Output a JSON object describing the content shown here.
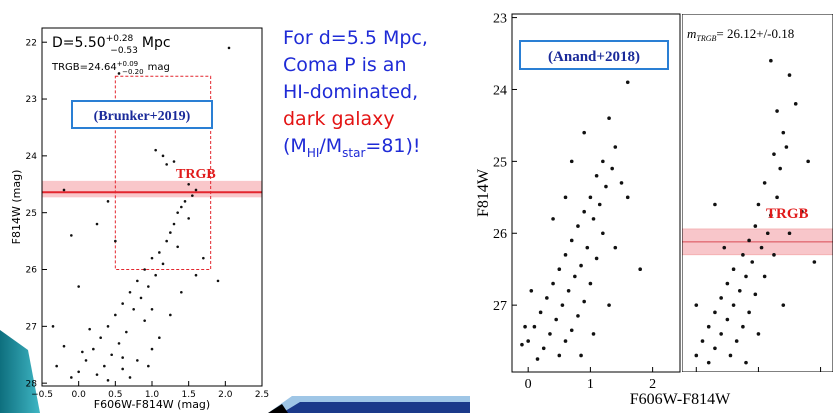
{
  "chart_data": [
    {
      "type": "scatter",
      "color": "#111111",
      "xlabel": "F606W-F814W (mag)",
      "ylabel": "F814W (mag)",
      "xlim": [
        -0.5,
        2.5
      ],
      "ylim": [
        28.05,
        21.75
      ],
      "xticks": [
        {
          "value": -0.5,
          "label": "−0.5"
        },
        {
          "value": 0,
          "label": "0.0"
        },
        {
          "value": 0.5,
          "label": "0.5"
        },
        {
          "value": 1,
          "label": "1.0"
        },
        {
          "value": 1.5,
          "label": "1.5"
        },
        {
          "value": 2,
          "label": "2.0"
        },
        {
          "value": 2.5,
          "label": "2.5"
        }
      ],
      "yticks": [
        22,
        23,
        24,
        25,
        26,
        27,
        28
      ],
      "x": [
        2.05,
        0.55,
        1.05,
        1.15,
        1.2,
        1.3,
        -0.2,
        0.4,
        1.5,
        1.6,
        1.55,
        1.45,
        1.4,
        1.35,
        1.5,
        1.3,
        1.25,
        1.2,
        1.35,
        1.1,
        1.0,
        1.15,
        0.9,
        1.05,
        0.8,
        0.95,
        0.7,
        0.85,
        0.6,
        0.75,
        0.5,
        0.9,
        0.4,
        0.65,
        0.3,
        0.55,
        0.2,
        0.45,
        0.1,
        0.35,
        0.0,
        0.6,
        -0.3,
        0.25,
        0.8,
        1.0,
        0.7,
        -0.1,
        0.15,
        -0.35,
        0.0,
        -0.1,
        0.25,
        1.6,
        1.9,
        1.25,
        1.1,
        0.5,
        1.7,
        0.95,
        0.4,
        0.05,
        1.4,
        1.0,
        0.6,
        -0.2
      ],
      "values": [
        22.1,
        22.55,
        23.9,
        24.0,
        24.15,
        24.1,
        24.6,
        24.8,
        24.5,
        24.6,
        24.7,
        24.8,
        24.9,
        25.0,
        25.1,
        25.2,
        25.35,
        25.5,
        25.6,
        25.7,
        25.8,
        25.9,
        26.0,
        26.1,
        26.2,
        26.3,
        26.4,
        26.5,
        26.6,
        26.7,
        26.8,
        26.9,
        27.0,
        27.1,
        27.2,
        27.3,
        27.4,
        27.5,
        27.6,
        27.7,
        27.8,
        27.75,
        27.7,
        27.85,
        27.6,
        27.4,
        27.9,
        27.9,
        27.05,
        27.0,
        26.3,
        25.4,
        25.2,
        26.1,
        26.2,
        26.8,
        27.2,
        25.5,
        25.8,
        27.7,
        27.95,
        27.45,
        26.4,
        26.7,
        27.55,
        27.35
      ],
      "annotations": {
        "distance": "D=5.50",
        "distance_plus": "+0.28",
        "distance_minus": "−0.53",
        "distance_unit": "Mpc",
        "trgb_prefix": "TRGB=",
        "trgb": 24.64,
        "trgb_plus": {
          "value": 0.09,
          "label": "+0.09"
        },
        "trgb_minus": {
          "value": 0.2,
          "label": "−0.20"
        },
        "trgb_unit": "mag",
        "source": "(Brunker+2019)",
        "line_label": "TRGB"
      },
      "selection_box": {
        "x": [
          0.5,
          1.8
        ],
        "y": [
          22.6,
          26.0
        ]
      }
    },
    {
      "type": "scatter",
      "color": "#111111",
      "xlabel": "F606W-F814W",
      "ylabel": "F814W",
      "xlim": [
        -0.26,
        2.44
      ],
      "ylim": [
        27.93,
        22.95
      ],
      "xticks": [
        0,
        1,
        2
      ],
      "yticks": [
        23,
        24,
        25,
        26,
        27
      ],
      "x": [
        1.5,
        1.6,
        1.3,
        0.9,
        1.4,
        1.2,
        1.35,
        1.1,
        0.7,
        1.25,
        1.0,
        1.15,
        0.9,
        1.05,
        0.8,
        1.2,
        0.7,
        0.95,
        0.6,
        1.1,
        0.85,
        0.5,
        0.75,
        1.0,
        0.4,
        0.65,
        0.3,
        0.9,
        0.55,
        0.2,
        0.8,
        0.45,
        0.1,
        0.7,
        0.35,
        0.0,
        0.6,
        0.25,
        -0.1,
        0.5,
        0.15,
        -0.05,
        1.4,
        1.6,
        1.8,
        0.4,
        1.3,
        1.05,
        0.05,
        0.85,
        1.5,
        0.6
      ],
      "values": [
        23.7,
        23.9,
        24.4,
        24.6,
        24.8,
        25.0,
        25.1,
        25.2,
        25.0,
        25.35,
        25.5,
        25.6,
        25.7,
        25.8,
        25.9,
        26.0,
        26.1,
        26.2,
        26.3,
        26.35,
        26.45,
        26.5,
        26.6,
        26.7,
        26.7,
        26.8,
        26.9,
        26.95,
        27.0,
        27.1,
        27.15,
        27.2,
        27.3,
        27.35,
        27.4,
        27.5,
        27.5,
        27.6,
        27.55,
        27.7,
        27.75,
        27.3,
        26.2,
        25.5,
        26.5,
        25.8,
        27.0,
        27.4,
        26.8,
        27.7,
        25.3,
        25.5
      ],
      "annotations": {
        "source": "(Anand+2018)"
      }
    },
    {
      "type": "scatter",
      "color": "#111111",
      "xlim": [
        -0.23,
        2.2
      ],
      "ylim": [
        27.93,
        22.95
      ],
      "xticks": [
        0,
        1,
        2
      ],
      "x": [
        1.2,
        1.5,
        1.6,
        1.3,
        1.4,
        1.45,
        1.25,
        1.35,
        1.1,
        1.3,
        1.0,
        1.2,
        0.95,
        1.15,
        0.85,
        1.05,
        0.75,
        1.25,
        0.9,
        0.6,
        0.8,
        1.1,
        0.5,
        0.7,
        0.95,
        0.4,
        0.6,
        0.3,
        0.85,
        0.5,
        0.2,
        0.75,
        0.4,
        0.1,
        0.65,
        0.3,
        0.0,
        0.55,
        0.2,
        1.5,
        1.7,
        1.9,
        0.3,
        1.4,
        1.0,
        0.0,
        1.8,
        0.8,
        0.45
      ],
      "values": [
        23.6,
        23.8,
        24.2,
        24.3,
        24.6,
        24.8,
        24.9,
        25.1,
        25.3,
        25.5,
        25.6,
        25.75,
        25.9,
        26.0,
        26.1,
        26.2,
        26.3,
        26.3,
        26.4,
        26.5,
        26.6,
        26.6,
        26.7,
        26.8,
        26.85,
        26.9,
        27.0,
        27.1,
        27.1,
        27.2,
        27.3,
        27.3,
        27.4,
        27.5,
        27.5,
        27.6,
        27.7,
        27.7,
        27.8,
        26.0,
        25.7,
        26.4,
        25.6,
        27.0,
        27.4,
        27.0,
        25.0,
        27.8,
        26.2
      ],
      "annotations": {
        "m": "m",
        "m_sub": "TRGB",
        "eq": "= ",
        "trgb": 26.12,
        "pm": "+/-",
        "trgb_err": 0.18,
        "line_label": "TRGB"
      }
    }
  ],
  "text": {
    "line1": "For d=5.5 Mpc,",
    "line2": "Coma P is an",
    "line3": "HI-dominated,",
    "line4": "dark galaxy",
    "line5_a": "(M",
    "line5_b": "HI",
    "line5_c": "/M",
    "line5_d": "star",
    "line5_e": "=81)!"
  }
}
